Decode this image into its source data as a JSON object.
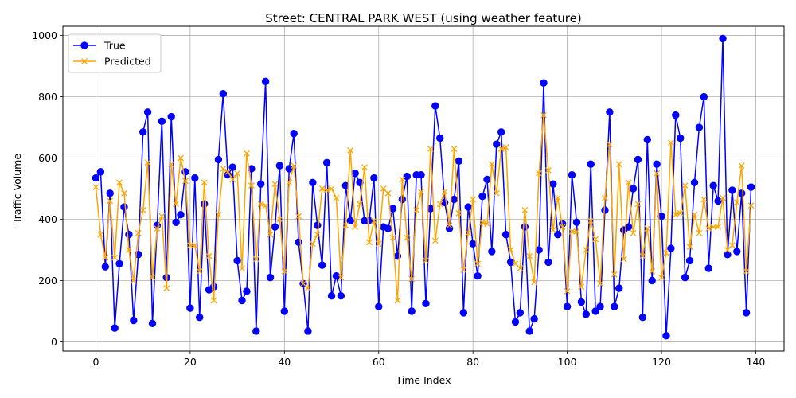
{
  "chart_data": {
    "type": "line",
    "title": "Street: CENTRAL PARK WEST (using weather feature)",
    "xlabel": "Time Index",
    "ylabel": "Traffic Volume",
    "xlim": [
      -7,
      146
    ],
    "ylim": [
      -30,
      1030
    ],
    "xticks": [
      0,
      20,
      40,
      60,
      80,
      100,
      120,
      140
    ],
    "yticks": [
      0,
      200,
      400,
      600,
      800,
      1000
    ],
    "grid": true,
    "legend_position": "upper-left",
    "series": [
      {
        "name": "True",
        "color": "#0000ff",
        "marker": "circle",
        "values": [
          535,
          555,
          245,
          485,
          45,
          255,
          440,
          350,
          70,
          285,
          685,
          750,
          60,
          380,
          720,
          210,
          735,
          390,
          415,
          555,
          110,
          535,
          80,
          450,
          170,
          180,
          595,
          810,
          545,
          570,
          265,
          135,
          165,
          565,
          35,
          515,
          850,
          210,
          375,
          575,
          100,
          565,
          680,
          325,
          190,
          35,
          520,
          380,
          250,
          585,
          150,
          215,
          150,
          510,
          395,
          550,
          520,
          395,
          395,
          535,
          115,
          375,
          370,
          435,
          280,
          465,
          540,
          100,
          545,
          545,
          125,
          435,
          770,
          665,
          455,
          370,
          465,
          590,
          95,
          440,
          320,
          215,
          475,
          530,
          295,
          645,
          685,
          350,
          260,
          65,
          95,
          375,
          35,
          75,
          300,
          845,
          260,
          515,
          350,
          385,
          115,
          545,
          390,
          130,
          90,
          580,
          100,
          115,
          430,
          750,
          115,
          175,
          365,
          375,
          500,
          595,
          80,
          660,
          200,
          580,
          410,
          20,
          305,
          740,
          665,
          210,
          265,
          520,
          700,
          800,
          240,
          510,
          460,
          990,
          285,
          495,
          295,
          485,
          95,
          505
        ]
      },
      {
        "name": "Predicted",
        "color": "#ffa500",
        "marker": "x",
        "values": [
          505,
          350,
          275,
          460,
          275,
          520,
          485,
          300,
          200,
          355,
          430,
          585,
          210,
          370,
          410,
          175,
          580,
          450,
          600,
          525,
          315,
          315,
          230,
          520,
          280,
          135,
          415,
          565,
          555,
          530,
          550,
          240,
          615,
          510,
          270,
          450,
          445,
          350,
          515,
          400,
          230,
          520,
          575,
          410,
          190,
          175,
          320,
          350,
          500,
          495,
          500,
          470,
          210,
          380,
          625,
          375,
          450,
          570,
          325,
          395,
          320,
          500,
          485,
          340,
          135,
          530,
          340,
          205,
          430,
          490,
          265,
          630,
          330,
          450,
          490,
          380,
          630,
          420,
          235,
          355,
          465,
          255,
          390,
          385,
          580,
          485,
          630,
          635,
          300,
          255,
          240,
          430,
          280,
          195,
          550,
          740,
          560,
          365,
          470,
          375,
          165,
          360,
          360,
          180,
          300,
          395,
          335,
          190,
          470,
          645,
          220,
          580,
          270,
          520,
          355,
          450,
          280,
          370,
          230,
          550,
          210,
          290,
          650,
          415,
          420,
          510,
          310,
          415,
          355,
          465,
          370,
          375,
          375,
          470,
          300,
          315,
          455,
          575,
          230,
          445
        ]
      }
    ]
  }
}
